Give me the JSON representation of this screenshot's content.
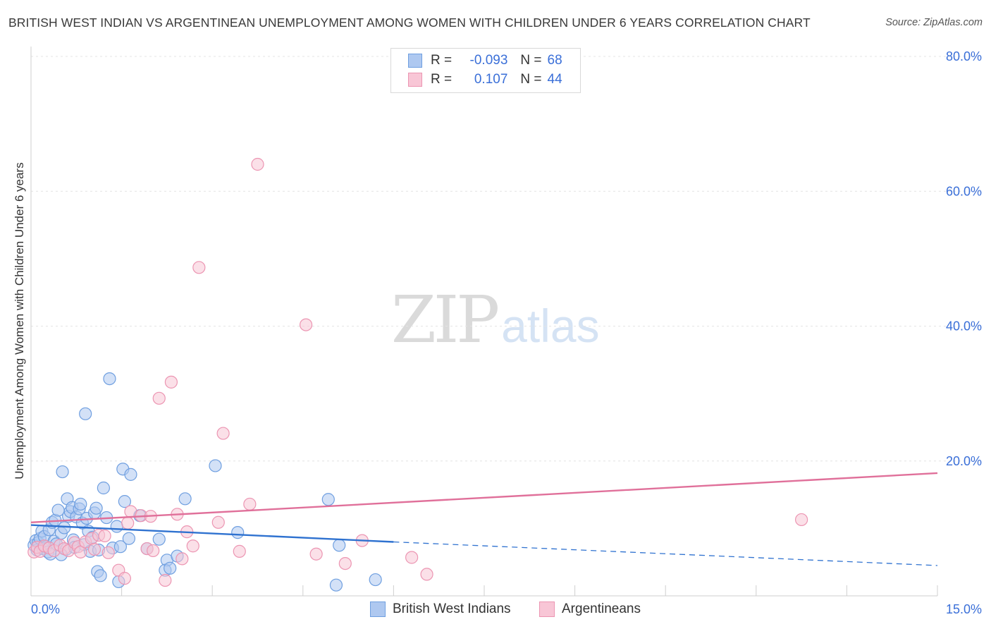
{
  "title": "BRITISH WEST INDIAN VS ARGENTINEAN UNEMPLOYMENT AMONG WOMEN WITH CHILDREN UNDER 6 YEARS CORRELATION CHART",
  "source": "Source: ZipAtlas.com",
  "watermark": {
    "zip": "ZIP",
    "atlas": "atlas"
  },
  "stats": [
    {
      "r_label": "R =",
      "r_value": "-0.093",
      "n_label": "N =",
      "n_value": "68",
      "swatch_fill": "#aec8f0",
      "swatch_border": "#6f9fe0"
    },
    {
      "r_label": "R =",
      "r_value": "0.107",
      "n_label": "N =",
      "n_value": "44",
      "swatch_fill": "#f8c6d6",
      "swatch_border": "#ec95b2"
    }
  ],
  "legend": [
    {
      "label": "British West Indians",
      "swatch_fill": "#aec8f0",
      "swatch_border": "#6f9fe0"
    },
    {
      "label": "Argentineans",
      "swatch_fill": "#f8c6d6",
      "swatch_border": "#ec95b2"
    }
  ],
  "chart_data": {
    "type": "scatter",
    "title": "BRITISH WEST INDIAN VS ARGENTINEAN UNEMPLOYMENT AMONG WOMEN WITH CHILDREN UNDER 6 YEARS CORRELATION CHART",
    "xlabel": "",
    "ylabel": "Unemployment Among Women with Children Under 6 years",
    "xlim": [
      0,
      15
    ],
    "ylim": [
      0,
      80
    ],
    "x_tick_labels": [
      {
        "value": 0,
        "label": "0.0%"
      },
      {
        "value": 15,
        "label": "15.0%"
      }
    ],
    "y_tick_labels": [
      {
        "value": 20,
        "label": "20.0%"
      },
      {
        "value": 40,
        "label": "40.0%"
      },
      {
        "value": 60,
        "label": "60.0%"
      },
      {
        "value": 80,
        "label": "80.0%"
      }
    ],
    "grid": true,
    "legend_position": "bottom-center",
    "series": [
      {
        "name": "British West Indians",
        "color": "#6f9fe0",
        "fill": "#aec8f0",
        "trend_color": "#2f72d0",
        "trend": {
          "x0": 0,
          "y0": 10.5,
          "x1": 6.0,
          "y1": 8.0,
          "dashed_to_x": 15,
          "dashed_to_y": 4.5
        },
        "points": [
          [
            0.05,
            7.5
          ],
          [
            0.08,
            8.2
          ],
          [
            0.1,
            6.8
          ],
          [
            0.12,
            7.9
          ],
          [
            0.15,
            8.5
          ],
          [
            0.18,
            9.6
          ],
          [
            0.2,
            7.0
          ],
          [
            0.22,
            8.8
          ],
          [
            0.25,
            7.3
          ],
          [
            0.28,
            6.5
          ],
          [
            0.3,
            9.8
          ],
          [
            0.32,
            6.2
          ],
          [
            0.35,
            10.9
          ],
          [
            0.38,
            8.1
          ],
          [
            0.4,
            11.2
          ],
          [
            0.42,
            7.7
          ],
          [
            0.45,
            12.7
          ],
          [
            0.5,
            9.3
          ],
          [
            0.52,
            18.4
          ],
          [
            0.55,
            10.1
          ],
          [
            0.58,
            6.9
          ],
          [
            0.6,
            14.4
          ],
          [
            0.62,
            11.8
          ],
          [
            0.65,
            12.5
          ],
          [
            0.68,
            13.1
          ],
          [
            0.7,
            8.3
          ],
          [
            0.72,
            7.2
          ],
          [
            0.75,
            11.7
          ],
          [
            0.8,
            12.9
          ],
          [
            0.82,
            13.6
          ],
          [
            0.85,
            10.8
          ],
          [
            0.88,
            7.6
          ],
          [
            0.9,
            27.0
          ],
          [
            0.92,
            11.5
          ],
          [
            0.95,
            9.6
          ],
          [
            0.98,
            6.6
          ],
          [
            1.02,
            8.7
          ],
          [
            1.05,
            12.3
          ],
          [
            1.08,
            13.0
          ],
          [
            1.1,
            3.6
          ],
          [
            1.12,
            6.8
          ],
          [
            1.15,
            3.0
          ],
          [
            1.2,
            16.0
          ],
          [
            1.25,
            11.6
          ],
          [
            1.3,
            32.2
          ],
          [
            1.35,
            7.1
          ],
          [
            1.42,
            10.3
          ],
          [
            1.45,
            2.1
          ],
          [
            1.48,
            7.3
          ],
          [
            1.52,
            18.8
          ],
          [
            1.55,
            14.0
          ],
          [
            1.62,
            8.5
          ],
          [
            1.65,
            18.0
          ],
          [
            1.8,
            11.9
          ],
          [
            1.92,
            7.0
          ],
          [
            2.12,
            8.4
          ],
          [
            2.25,
            5.3
          ],
          [
            2.22,
            3.8
          ],
          [
            2.3,
            4.1
          ],
          [
            2.42,
            5.9
          ],
          [
            2.55,
            14.4
          ],
          [
            3.05,
            19.3
          ],
          [
            3.42,
            9.4
          ],
          [
            4.92,
            14.3
          ],
          [
            5.1,
            7.5
          ],
          [
            5.05,
            1.6
          ],
          [
            5.7,
            2.4
          ],
          [
            0.5,
            6.1
          ]
        ]
      },
      {
        "name": "Argentineans",
        "color": "#ec95b2",
        "fill": "#f8c6d6",
        "trend_color": "#e0709a",
        "trend": {
          "x0": 0,
          "y0": 10.9,
          "x1": 15,
          "y1": 18.2
        },
        "points": [
          [
            0.05,
            6.5
          ],
          [
            0.1,
            7.2
          ],
          [
            0.15,
            6.6
          ],
          [
            0.22,
            7.4
          ],
          [
            0.3,
            7.1
          ],
          [
            0.38,
            6.7
          ],
          [
            0.48,
            7.5
          ],
          [
            0.55,
            7.0
          ],
          [
            0.62,
            6.7
          ],
          [
            0.72,
            7.9
          ],
          [
            0.78,
            7.3
          ],
          [
            0.82,
            6.5
          ],
          [
            0.9,
            8.0
          ],
          [
            1.0,
            8.5
          ],
          [
            1.05,
            6.9
          ],
          [
            1.12,
            9.0
          ],
          [
            1.22,
            8.9
          ],
          [
            1.28,
            6.4
          ],
          [
            1.45,
            3.8
          ],
          [
            1.55,
            2.6
          ],
          [
            1.6,
            10.8
          ],
          [
            1.65,
            12.5
          ],
          [
            1.82,
            11.9
          ],
          [
            1.92,
            7.0
          ],
          [
            1.98,
            11.8
          ],
          [
            2.02,
            6.7
          ],
          [
            2.12,
            29.3
          ],
          [
            2.22,
            2.3
          ],
          [
            2.32,
            31.7
          ],
          [
            2.42,
            12.1
          ],
          [
            2.5,
            5.5
          ],
          [
            2.58,
            9.5
          ],
          [
            2.68,
            7.4
          ],
          [
            2.78,
            48.7
          ],
          [
            3.1,
            10.9
          ],
          [
            3.18,
            24.1
          ],
          [
            3.45,
            6.6
          ],
          [
            3.62,
            13.6
          ],
          [
            3.75,
            64.0
          ],
          [
            4.55,
            40.2
          ],
          [
            4.72,
            6.2
          ],
          [
            5.2,
            4.8
          ],
          [
            5.48,
            8.2
          ],
          [
            6.3,
            5.7
          ],
          [
            6.55,
            3.2
          ],
          [
            12.75,
            11.3
          ]
        ]
      }
    ]
  }
}
